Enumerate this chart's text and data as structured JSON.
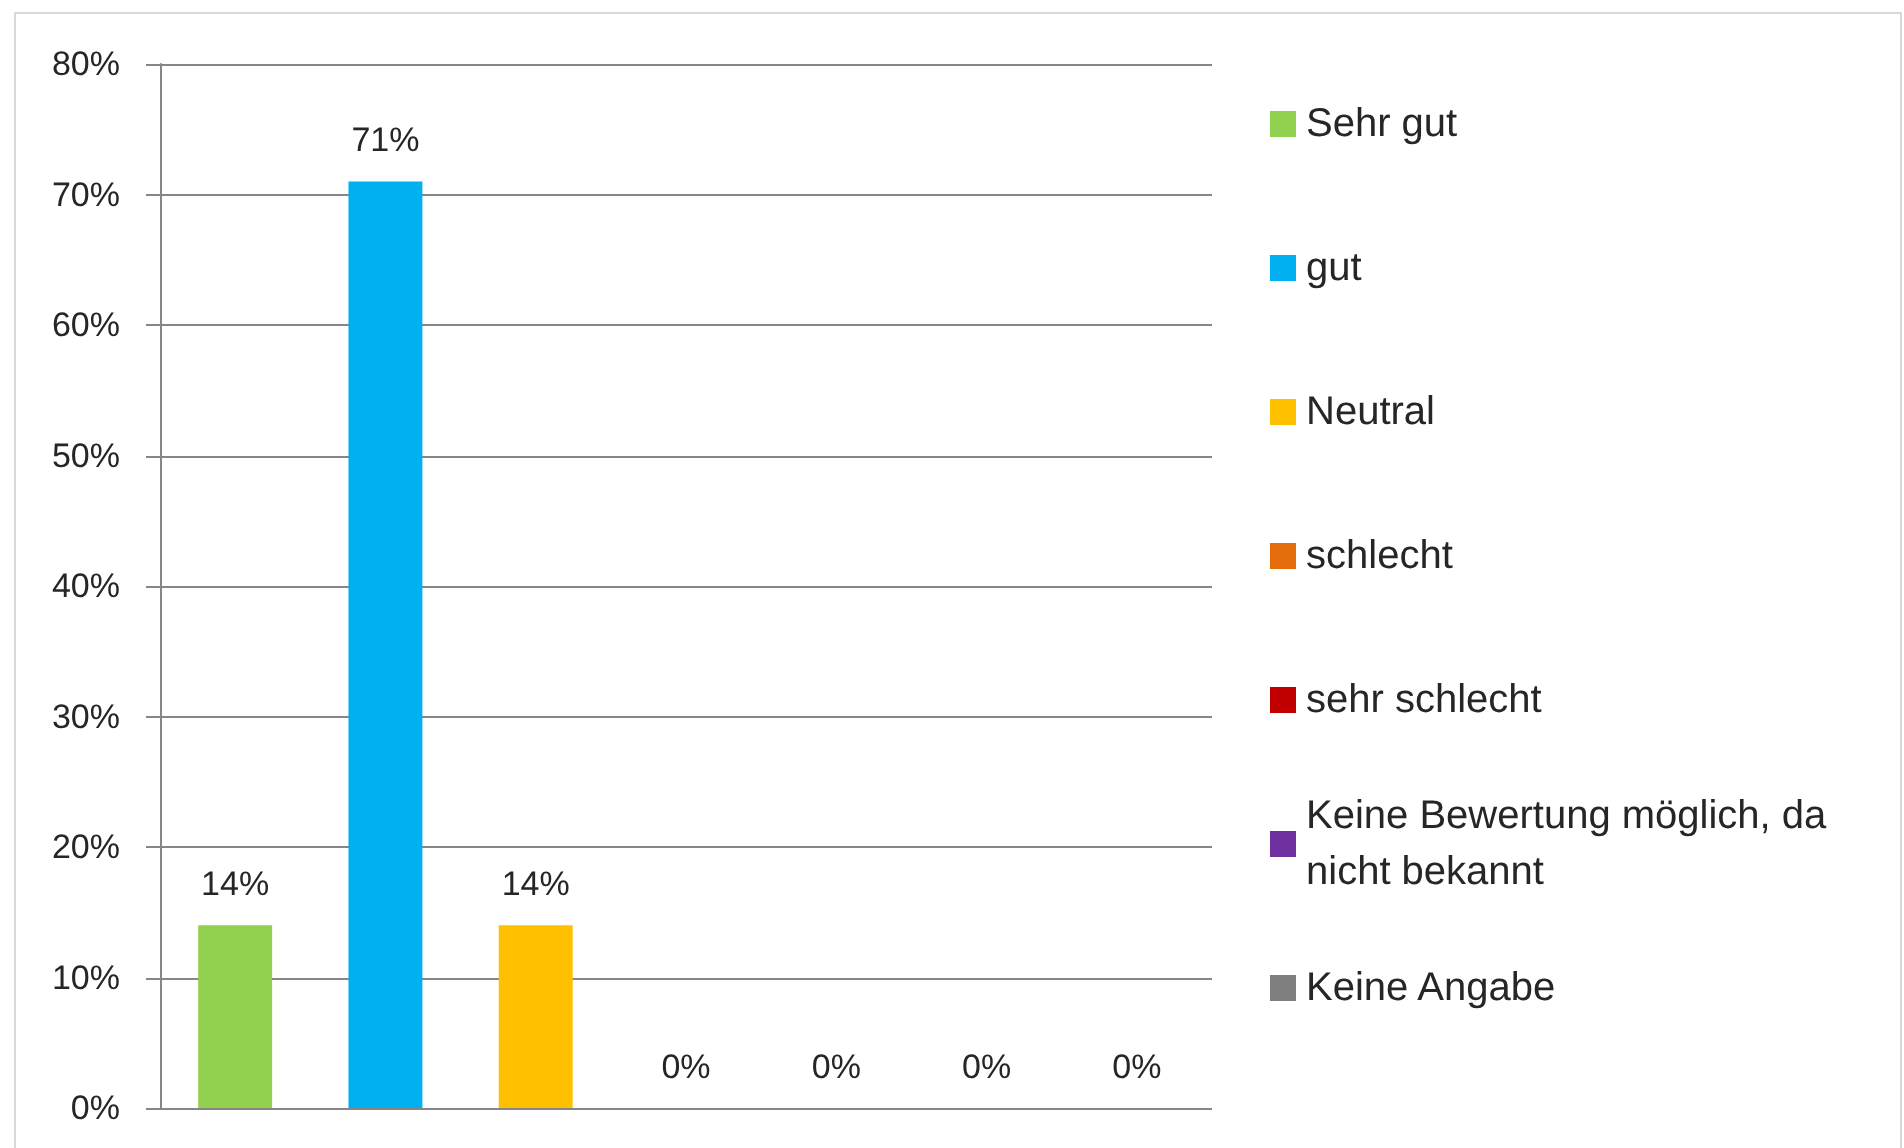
{
  "chart_data": {
    "type": "bar",
    "stacked": true,
    "categories": [
      null,
      null,
      null,
      null,
      null,
      null,
      null
    ],
    "series": [
      {
        "name": "Sehr gut",
        "color": "#92d050",
        "values": [
          14,
          null,
          null,
          null,
          null,
          null,
          null
        ],
        "value_labels": [
          "14%",
          null,
          null,
          null,
          null,
          null,
          null
        ]
      },
      {
        "name": "gut",
        "color": "#00b0f0",
        "values": [
          null,
          71,
          null,
          null,
          null,
          null,
          null
        ],
        "value_labels": [
          null,
          "71%",
          null,
          null,
          null,
          null,
          null
        ]
      },
      {
        "name": "Neutral",
        "color": "#ffc000",
        "values": [
          null,
          null,
          14,
          null,
          null,
          null,
          null
        ],
        "value_labels": [
          null,
          null,
          "14%",
          null,
          null,
          null,
          null
        ]
      },
      {
        "name": "schlecht",
        "color": "#e46c0a",
        "values": [
          null,
          null,
          null,
          0,
          null,
          null,
          null
        ],
        "value_labels": [
          null,
          null,
          null,
          "0%",
          null,
          null,
          null
        ]
      },
      {
        "name": "sehr schlecht",
        "color": "#c00000",
        "values": [
          null,
          null,
          null,
          null,
          0,
          null,
          null
        ],
        "value_labels": [
          null,
          null,
          null,
          null,
          "0%",
          null,
          null
        ]
      },
      {
        "name": "Keine Bewertung möglich, da nicht bekannt",
        "color": "#7030a0",
        "values": [
          null,
          null,
          null,
          null,
          null,
          0,
          null
        ],
        "value_labels": [
          null,
          null,
          null,
          null,
          null,
          "0%",
          null
        ]
      },
      {
        "name": "Keine Angabe",
        "color": "#7f7f7f",
        "values": [
          null,
          null,
          null,
          null,
          null,
          null,
          0
        ],
        "value_labels": [
          null,
          null,
          null,
          null,
          null,
          null,
          "0%"
        ]
      }
    ],
    "ylim": [
      0,
      80
    ],
    "yticks": [
      {
        "value": 0,
        "label": "0%"
      },
      {
        "value": 10,
        "label": "10%"
      },
      {
        "value": 20,
        "label": "20%"
      },
      {
        "value": 30,
        "label": "30%"
      },
      {
        "value": 40,
        "label": "40%"
      },
      {
        "value": 50,
        "label": "50%"
      },
      {
        "value": 60,
        "label": "60%"
      },
      {
        "value": 70,
        "label": "70%"
      },
      {
        "value": 80,
        "label": "80%"
      }
    ],
    "grid": "y",
    "legend": "right",
    "tick_labels": "y"
  }
}
